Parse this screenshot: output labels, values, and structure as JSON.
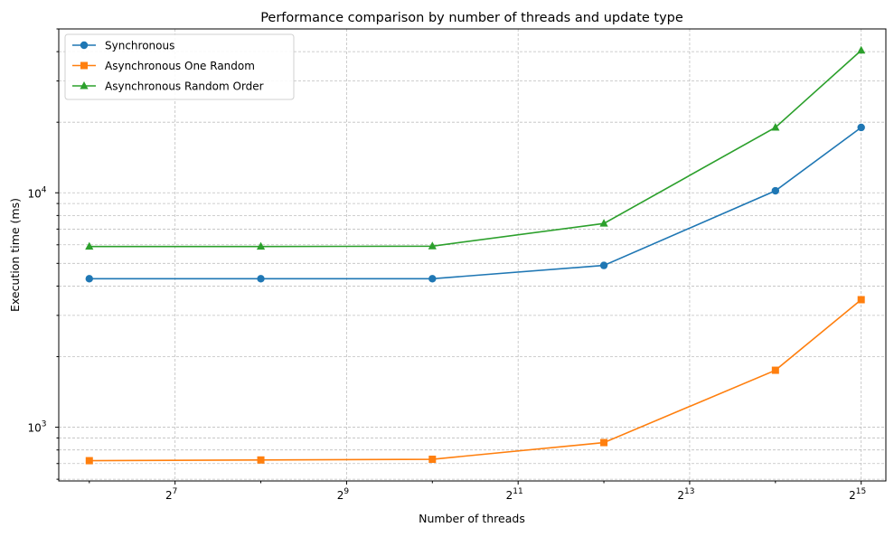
{
  "chart_data": {
    "type": "line",
    "title": "Performance comparison by number of threads and update type",
    "xlabel": "Number of threads",
    "ylabel": "Execution time (ms)",
    "x_scale": "log2",
    "y_scale": "log10",
    "x": [
      64,
      256,
      1024,
      4096,
      16384,
      32768
    ],
    "xlim": [
      50,
      40000
    ],
    "ylim": [
      590,
      50000
    ],
    "x_ticks": [
      {
        "base": "2",
        "exp": "7",
        "value": 128
      },
      {
        "base": "2",
        "exp": "9",
        "value": 512
      },
      {
        "base": "2",
        "exp": "11",
        "value": 2048
      },
      {
        "base": "2",
        "exp": "13",
        "value": 8192
      },
      {
        "base": "2",
        "exp": "15",
        "value": 32768
      }
    ],
    "y_ticks": [
      {
        "base": "10",
        "exp": "3",
        "value": 1000
      },
      {
        "base": "10",
        "exp": "4",
        "value": 10000
      }
    ],
    "grid": true,
    "legend_position": "top-left",
    "series": [
      {
        "name": "Synchronous",
        "color": "#1f77b4",
        "marker": "circle",
        "values": [
          4300,
          4300,
          4300,
          4900,
          10200,
          19000
        ]
      },
      {
        "name": "Asynchronous One Random",
        "color": "#ff7f0e",
        "marker": "square",
        "values": [
          720,
          725,
          730,
          860,
          1750,
          3500
        ]
      },
      {
        "name": "Asynchronous Random Order",
        "color": "#2ca02c",
        "marker": "triangle",
        "values": [
          5900,
          5900,
          5920,
          7400,
          19000,
          40500
        ]
      }
    ]
  }
}
